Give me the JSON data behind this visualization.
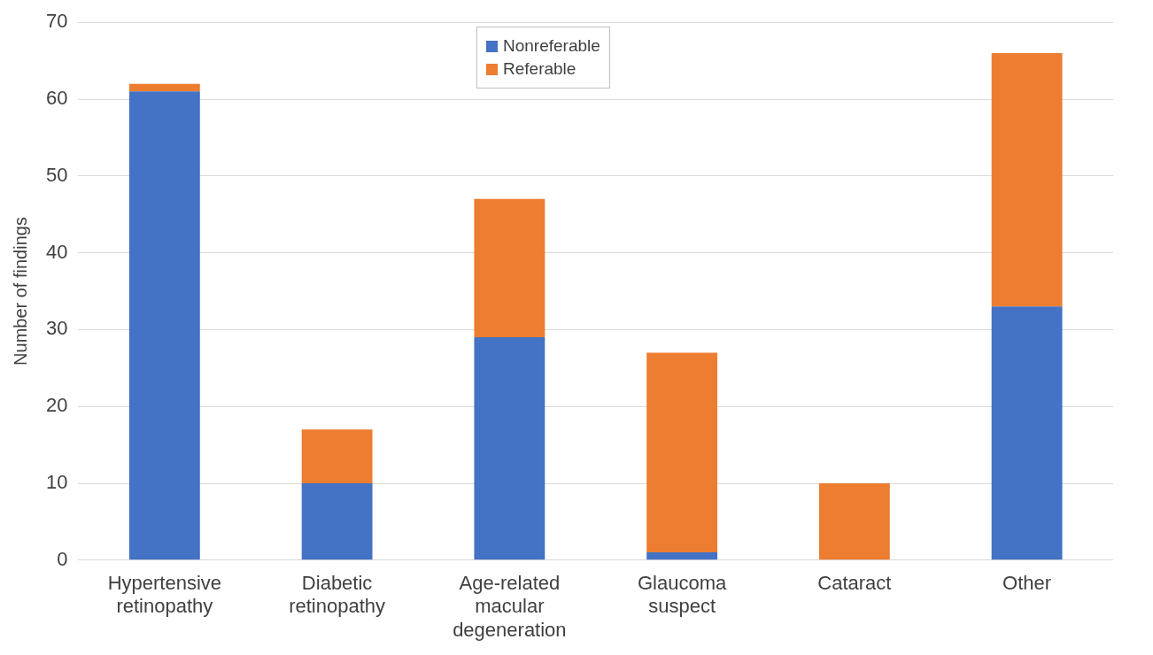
{
  "chart_data": {
    "type": "bar",
    "stacked": true,
    "ylabel": "Number of findings",
    "categories": [
      "Hypertensive retinopathy",
      "Diabetic retinopathy",
      "Age-related macular degeneration",
      "Glaucoma suspect",
      "Cataract",
      "Other"
    ],
    "series": [
      {
        "name": "Nonreferable",
        "color": "#4472c4",
        "values": [
          61,
          10,
          29,
          1,
          0,
          33
        ]
      },
      {
        "name": "Referable",
        "color": "#ed7d31",
        "values": [
          1,
          7,
          18,
          26,
          10,
          33
        ]
      }
    ],
    "ylim": [
      0,
      70
    ],
    "yticks": [
      0,
      10,
      20,
      30,
      40,
      50,
      60,
      70
    ],
    "grid": "y",
    "legend": "top"
  }
}
